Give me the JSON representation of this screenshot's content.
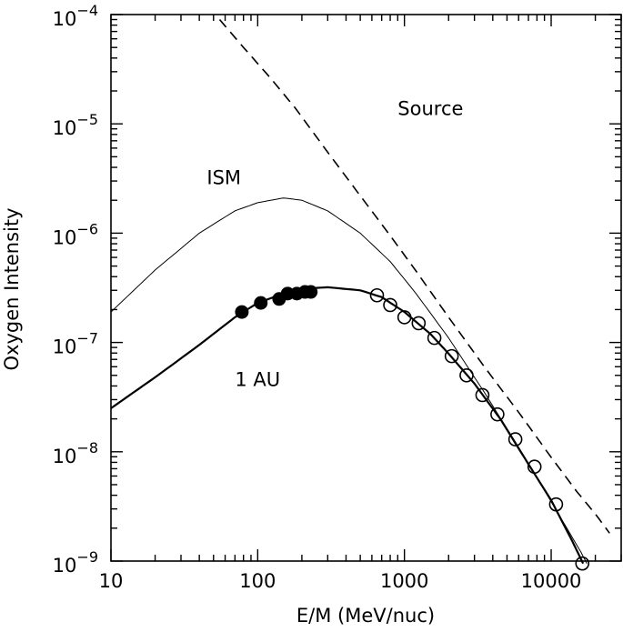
{
  "chart_data": {
    "type": "line",
    "xlabel": "E/M (MeV/nuc)",
    "ylabel": "Oxygen Intensity",
    "xscale": "log",
    "yscale": "log",
    "xlim": [
      10,
      30000
    ],
    "ylim": [
      1e-09,
      0.0001
    ],
    "x_tick_labels": [
      {
        "value": 10,
        "label": "10"
      },
      {
        "value": 100,
        "label": "100"
      },
      {
        "value": 1000,
        "label": "1000"
      },
      {
        "value": 10000,
        "label": "10000"
      }
    ],
    "y_tick_labels": [
      {
        "value": 0.0001,
        "base": "10",
        "exp": "−4"
      },
      {
        "value": 1e-05,
        "base": "10",
        "exp": "−5"
      },
      {
        "value": 1e-06,
        "base": "10",
        "exp": "−6"
      },
      {
        "value": 1e-07,
        "base": "10",
        "exp": "−7"
      },
      {
        "value": 1e-08,
        "base": "10",
        "exp": "−8"
      },
      {
        "value": 1e-09,
        "base": "10",
        "exp": "−9"
      }
    ],
    "series": [
      {
        "name": "Source",
        "style": "dashed",
        "points": [
          [
            55,
            9e-05
          ],
          [
            80,
            5e-05
          ],
          [
            120,
            2.7e-05
          ],
          [
            180,
            1.4e-05
          ],
          [
            300,
            5.5e-06
          ],
          [
            500,
            2.2e-06
          ],
          [
            800,
            9.5e-07
          ],
          [
            1200,
            4.5e-07
          ],
          [
            2000,
            1.7e-07
          ],
          [
            3500,
            6e-08
          ],
          [
            6000,
            2.3e-08
          ],
          [
            10000,
            8.9e-09
          ],
          [
            15000,
            4.3e-09
          ],
          [
            20000,
            2.7e-09
          ],
          [
            25000,
            1.8e-09
          ]
        ]
      },
      {
        "name": "ISM",
        "style": "solid-thin",
        "points": [
          [
            10,
            1.9e-07
          ],
          [
            20,
            4.6e-07
          ],
          [
            40,
            1e-06
          ],
          [
            70,
            1.6e-06
          ],
          [
            100,
            1.9e-06
          ],
          [
            150,
            2.1e-06
          ],
          [
            200,
            2e-06
          ],
          [
            300,
            1.6e-06
          ],
          [
            500,
            1e-06
          ],
          [
            800,
            5.5e-07
          ],
          [
            1200,
            2.8e-07
          ],
          [
            2000,
            1.1e-07
          ],
          [
            3500,
            3.5e-08
          ],
          [
            6000,
            1.1e-08
          ],
          [
            10000,
            3.5e-09
          ],
          [
            16000,
            1.2e-09
          ],
          [
            17500,
            9.5e-10
          ]
        ]
      },
      {
        "name": "1 AU",
        "style": "solid",
        "points": [
          [
            10,
            2.5e-08
          ],
          [
            20,
            4.8e-08
          ],
          [
            40,
            9.5e-08
          ],
          [
            70,
            1.7e-07
          ],
          [
            100,
            2.3e-07
          ],
          [
            150,
            2.8e-07
          ],
          [
            200,
            3.1e-07
          ],
          [
            300,
            3.2e-07
          ],
          [
            500,
            3e-07
          ],
          [
            700,
            2.6e-07
          ],
          [
            1000,
            1.9e-07
          ],
          [
            1500,
            1.2e-07
          ],
          [
            2000,
            7.9e-08
          ],
          [
            3000,
            4.2e-08
          ],
          [
            4500,
            2e-08
          ],
          [
            7000,
            7.7e-09
          ],
          [
            10000,
            3.6e-09
          ],
          [
            14000,
            1.5e-09
          ],
          [
            16500,
            9.5e-10
          ]
        ]
      }
    ],
    "points_filled": [
      [
        78,
        1.9e-07
      ],
      [
        105,
        2.3e-07
      ],
      [
        140,
        2.5e-07
      ],
      [
        160,
        2.8e-07
      ],
      [
        185,
        2.8e-07
      ],
      [
        210,
        2.9e-07
      ],
      [
        230,
        2.9e-07
      ]
    ],
    "points_open": [
      [
        650,
        2.7e-07
      ],
      [
        800,
        2.2e-07
      ],
      [
        1000,
        1.7e-07
      ],
      [
        1250,
        1.5e-07
      ],
      [
        1600,
        1.1e-07
      ],
      [
        2100,
        7.5e-08
      ],
      [
        2650,
        5e-08
      ],
      [
        3400,
        3.3e-08
      ],
      [
        4300,
        2.2e-08
      ],
      [
        5700,
        1.3e-08
      ],
      [
        7700,
        7.3e-09
      ],
      [
        10800,
        3.3e-09
      ],
      [
        16300,
        9.5e-10
      ]
    ],
    "annotations": [
      {
        "text": "Source",
        "x": 900,
        "y": 1.2e-05
      },
      {
        "text": "ISM",
        "x": 45,
        "y": 2.8e-06
      },
      {
        "text": "1 AU",
        "x": 70,
        "y": 4e-08
      }
    ],
    "colors": {
      "ink": "#000000",
      "background": "#ffffff"
    }
  }
}
